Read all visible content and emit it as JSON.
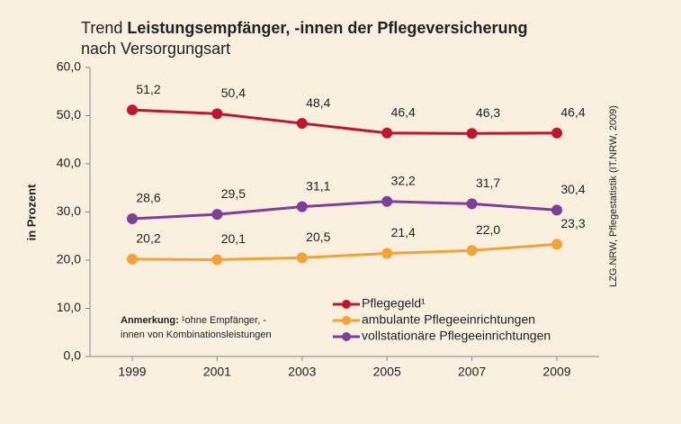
{
  "chart_data": {
    "type": "line",
    "title": "Trend",
    "title_bold": "Leistungsempfänger, -innen der Pflegeversicherung",
    "subtitle": "nach Versorgungsart",
    "y_label": "in Prozent",
    "source": "LZG.NRW, Pflegestatistik (IT.NRW, 2009)",
    "annotation_bold": "Anmerkung:",
    "annotation_lines": [
      "¹ohne Empfänger, -",
      "innen von Kombinationsleistungen"
    ],
    "categories": [
      "1999",
      "2001",
      "2003",
      "2005",
      "2007",
      "2009"
    ],
    "ylim": [
      0,
      60
    ],
    "yticks": [
      {
        "value": 0,
        "label": "0,0"
      },
      {
        "value": 10,
        "label": "10,0"
      },
      {
        "value": 20,
        "label": "20,0"
      },
      {
        "value": 30,
        "label": "30,0"
      },
      {
        "value": 40,
        "label": "40,0"
      },
      {
        "value": 50,
        "label": "50,0"
      },
      {
        "value": 60,
        "label": "60,0"
      }
    ],
    "series": [
      {
        "name": "Pflegegeld¹",
        "color": "#c0152f",
        "values": [
          51.2,
          50.4,
          48.4,
          46.4,
          46.3,
          46.4
        ],
        "value_labels": [
          "51,2",
          "50,4",
          "48,4",
          "46,4",
          "46,3",
          "46,4"
        ]
      },
      {
        "name": "ambulante Pflegeeinrichtungen",
        "color": "#f2a236",
        "values": [
          20.2,
          20.1,
          20.5,
          21.4,
          22.0,
          23.3
        ],
        "value_labels": [
          "20,2",
          "20,1",
          "20,5",
          "21,4",
          "22,0",
          "23,3"
        ]
      },
      {
        "name": "vollstationäre Pflegeeinrichtungen",
        "color": "#7d3f98",
        "values": [
          28.6,
          29.5,
          31.1,
          32.2,
          31.7,
          30.4
        ],
        "value_labels": [
          "28,6",
          "29,5",
          "31,1",
          "32,2",
          "31,7",
          "30,4"
        ]
      }
    ]
  }
}
